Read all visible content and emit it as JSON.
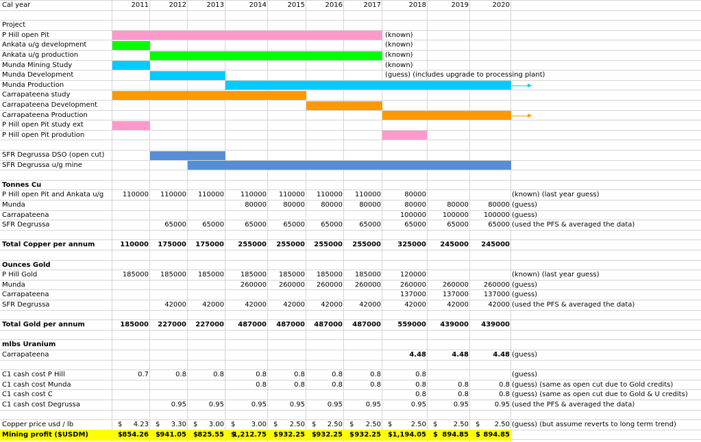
{
  "colors": {
    "pink": "#ff99cc",
    "green": "#00ff00",
    "cyan": "#00ccff",
    "blue": "#00b0f0",
    "orange": "#ff9900",
    "steel": "#558ed5",
    "yellow": "#ffff00"
  },
  "header": {
    "label": "Cal year",
    "years": [
      "2011",
      "2012",
      "2013",
      "2014",
      "2015",
      "2016",
      "2017",
      "2018",
      "2019",
      "2020"
    ]
  },
  "project": {
    "heading": "Project",
    "rows": [
      {
        "label": "P Hill open Pit",
        "note": "(known)"
      },
      {
        "label": "Ankata u/g development",
        "note": "(known)"
      },
      {
        "label": "Ankata u/g production",
        "note": "(known)"
      },
      {
        "label": "Munda Mining Study",
        "note": "(known)"
      },
      {
        "label": "Munda Development",
        "note": "(guess) (includes upgrade to processing plant)"
      },
      {
        "label": "Munda Production",
        "note": ""
      },
      {
        "label": "Carrapateena study",
        "note": ""
      },
      {
        "label": "Carrapateena Development",
        "note": ""
      },
      {
        "label": "Carrapateena Production",
        "note": ""
      },
      {
        "label": "P Hill open Pit study ext",
        "note": ""
      },
      {
        "label": "P Hill open Pit prodution",
        "note": ""
      }
    ],
    "sfr": [
      {
        "label": "SFR Degrussa DSO (open cut)"
      },
      {
        "label": "SFR Degrussa u/g mine"
      }
    ]
  },
  "tonnes": {
    "heading": "Tonnes Cu",
    "rows": [
      {
        "label": "P Hill open Pit and Ankata u/g",
        "values": [
          "110000",
          "110000",
          "110000",
          "110000",
          "110000",
          "110000",
          "110000",
          "80000",
          "",
          ""
        ],
        "note": "(known) (last year guess)"
      },
      {
        "label": "Munda",
        "values": [
          "",
          "",
          "",
          "80000",
          "80000",
          "80000",
          "80000",
          "80000",
          "80000",
          "80000"
        ],
        "note": "(guess)"
      },
      {
        "label": "Carrapateena",
        "values": [
          "",
          "",
          "",
          "",
          "",
          "",
          "",
          "100000",
          "100000",
          "100000"
        ],
        "note": "(guess)"
      },
      {
        "label": "SFR Degrussa",
        "values": [
          "",
          "65000",
          "65000",
          "65000",
          "65000",
          "65000",
          "65000",
          "65000",
          "65000",
          "65000"
        ],
        "note": "(used the PFS & averaged the data)"
      }
    ],
    "total": {
      "label": "Total Copper  per annum",
      "values": [
        "110000",
        "175000",
        "175000",
        "255000",
        "255000",
        "255000",
        "255000",
        "325000",
        "245000",
        "245000"
      ]
    }
  },
  "gold": {
    "heading": "Ounces Gold",
    "rows": [
      {
        "label": "P Hill Gold",
        "values": [
          "185000",
          "185000",
          "185000",
          "185000",
          "185000",
          "185000",
          "185000",
          "120000",
          "",
          ""
        ],
        "note": "(known) (last year guess)"
      },
      {
        "label": "Munda",
        "values": [
          "",
          "",
          "",
          "260000",
          "260000",
          "260000",
          "260000",
          "260000",
          "260000",
          "260000"
        ],
        "note": "(guess)"
      },
      {
        "label": "Carrapateena",
        "values": [
          "",
          "",
          "",
          "",
          "",
          "",
          "",
          "137000",
          "137000",
          "137000"
        ],
        "note": "(guess)"
      },
      {
        "label": "SFR Degrussa",
        "values": [
          "",
          "42000",
          "42000",
          "42000",
          "42000",
          "42000",
          "42000",
          "42000",
          "42000",
          "42000"
        ],
        "note": "(used the PFS & averaged the data)"
      }
    ],
    "total": {
      "label": "Total Gold per annum",
      "values": [
        "185000",
        "227000",
        "227000",
        "487000",
        "487000",
        "487000",
        "487000",
        "559000",
        "439000",
        "439000"
      ]
    }
  },
  "uranium": {
    "heading": "mlbs Uranium",
    "label": "Carrapateena",
    "values": [
      "",
      "",
      "",
      "",
      "",
      "",
      "",
      "4.48",
      "4.48",
      "4.48"
    ],
    "note": "(guess)"
  },
  "cost": {
    "rows": [
      {
        "label": "C1 cash cost P Hill",
        "values": [
          "0.7",
          "0.8",
          "0.8",
          "0.8",
          "0.8",
          "0.8",
          "0.8",
          "0.8",
          "",
          ""
        ],
        "note": "(guess)"
      },
      {
        "label": "C1 cash cost Munda",
        "values": [
          "",
          "",
          "",
          "0.8",
          "0.8",
          "0.8",
          "0.8",
          "0.8",
          "0.8",
          "0.8"
        ],
        "note": "(guess) (same as open cut due to Gold credits)"
      },
      {
        "label": "C1 cash cost C",
        "values": [
          "",
          "",
          "",
          "",
          "",
          "",
          "",
          "0.8",
          "0.8",
          "0.8"
        ],
        "note": "(guess) (same as open cut due to Gold & U credits)"
      },
      {
        "label": "C1 cash cost Degrussa",
        "values": [
          "",
          "0.95",
          "0.95",
          "0.95",
          "0.95",
          "0.95",
          "0.95",
          "0.95",
          "0.95",
          "0.95"
        ],
        "note": "(used the PFS & averaged the data)"
      }
    ]
  },
  "price": {
    "label": "Copper price usd / lb",
    "values": [
      "4.23",
      "3.30",
      "3.00",
      "3.00",
      "2.50",
      "2.50",
      "2.50",
      "2.50",
      "2.50",
      "2.50"
    ],
    "note": "(guess) (but assume reverts to long term trend)"
  },
  "profit": {
    "label": "Mining profit ($USDM)",
    "values": [
      "854.26",
      "941.05",
      "825.55",
      "1,212.75",
      "932.25",
      "932.25",
      "932.25",
      "1,194.05",
      "894.85",
      "894.85"
    ]
  },
  "currency": "$"
}
